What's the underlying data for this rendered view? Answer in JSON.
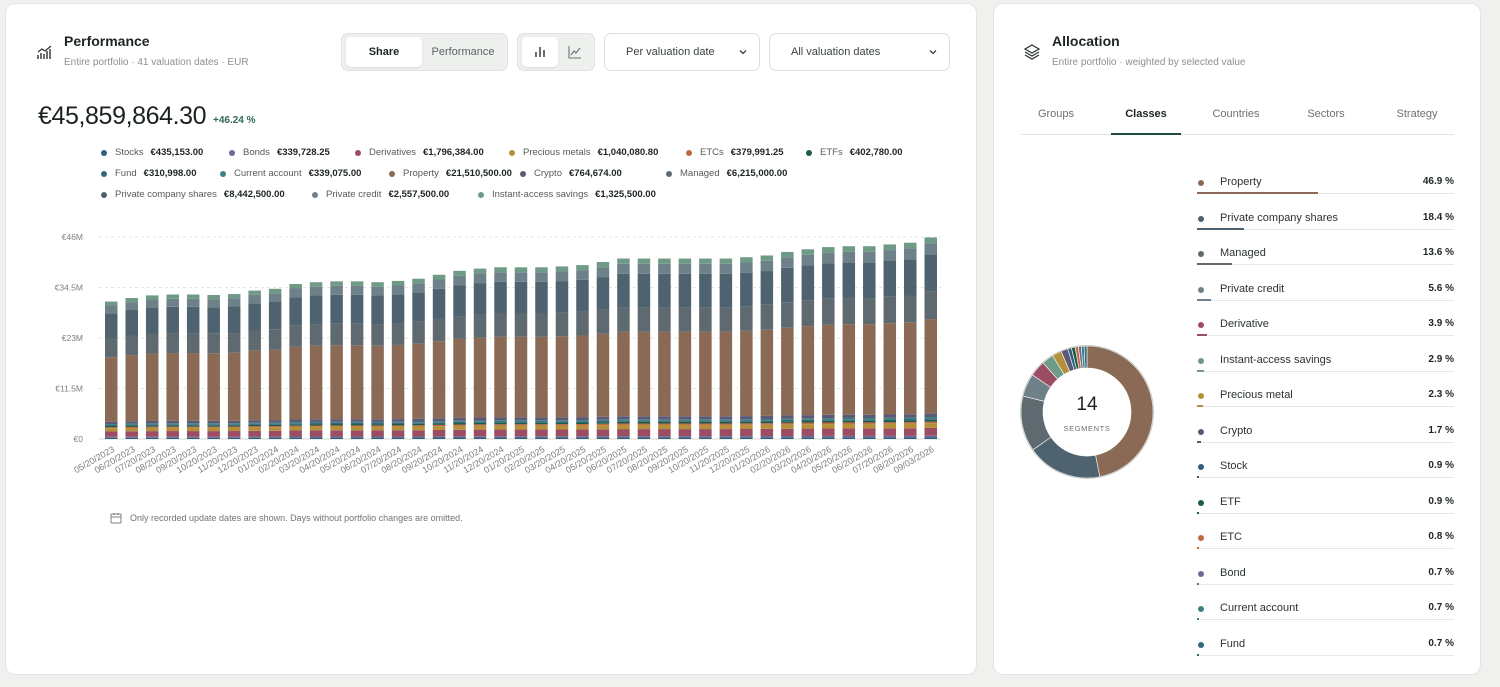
{
  "performance": {
    "title": "Performance",
    "subtitle": "Entire portfolio · 41 valuation dates · EUR",
    "mode_tabs": [
      "Share",
      "Performance"
    ],
    "active_mode": "Share",
    "view_icons": [
      "bar-chart-icon",
      "line-chart-icon"
    ],
    "dropdown_period": "Per valuation date",
    "dropdown_dates": "All valuation dates",
    "total_value": "€45,859,864.30",
    "total_change": "+46.24 %",
    "legend": [
      {
        "name": "Stocks",
        "value": "€435,153.00",
        "color": "#2f5d7c"
      },
      {
        "name": "Bonds",
        "value": "€339,728.25",
        "color": "#6c6a94"
      },
      {
        "name": "Derivatives",
        "value": "€1,796,384.00",
        "color": "#9c4d64"
      },
      {
        "name": "Precious metals",
        "value": "€1,040,080.80",
        "color": "#b5903a"
      },
      {
        "name": "ETCs",
        "value": "€379,991.25",
        "color": "#c26a3f"
      },
      {
        "name": "ETFs",
        "value": "€402,780.00",
        "color": "#1d5a48"
      },
      {
        "name": "Fund",
        "value": "€310,998.00",
        "color": "#35697a"
      },
      {
        "name": "Current account",
        "value": "€339,075.00",
        "color": "#3f7f7f"
      },
      {
        "name": "Property",
        "value": "€21,510,500.00",
        "color": "#8a6a55"
      },
      {
        "name": "Crypto",
        "value": "€764,674.00",
        "color": "#5a5a78"
      },
      {
        "name": "Managed",
        "value": "€6,215,000.00",
        "color": "#5e6a70"
      },
      {
        "name": "Private company shares",
        "value": "€8,442,500.00",
        "color": "#4f6270"
      },
      {
        "name": "Private credit",
        "value": "€2,557,500.00",
        "color": "#6e8088"
      },
      {
        "name": "Instant-access savings",
        "value": "€1,325,500.00",
        "color": "#6f9a86"
      }
    ],
    "footnote": "Only recorded update dates are shown. Days without portfolio changes are omitted."
  },
  "chart_data": {
    "type": "bar",
    "stacked": true,
    "ylim": [
      0,
      46000000
    ],
    "ytick_labels": [
      "€0",
      "€11.5M",
      "€23M",
      "€34.5M",
      "€46M"
    ],
    "categories": [
      "05/20/2023",
      "06/20/2023",
      "07/20/2023",
      "08/20/2023",
      "09/20/2023",
      "10/20/2023",
      "11/20/2023",
      "12/20/2023",
      "01/20/2024",
      "02/20/2024",
      "03/20/2024",
      "04/20/2024",
      "05/20/2024",
      "06/20/2024",
      "07/20/2024",
      "08/20/2024",
      "09/20/2024",
      "10/20/2024",
      "11/20/2024",
      "12/20/2024",
      "01/20/2025",
      "02/20/2025",
      "03/20/2025",
      "04/20/2025",
      "05/20/2025",
      "06/20/2025",
      "07/20/2025",
      "08/20/2025",
      "09/20/2025",
      "10/20/2025",
      "11/20/2025",
      "12/20/2025",
      "01/20/2026",
      "02/20/2026",
      "03/20/2026",
      "04/20/2026",
      "05/20/2026",
      "06/20/2026",
      "07/20/2026",
      "08/20/2026",
      "09/03/2026"
    ],
    "xtick_labels": [
      "05/20/2023",
      "06/20/2023",
      "07/20/2023",
      "08/20/2023",
      "09/20/2023",
      "10/20/2023",
      "11/20/2023",
      "12/20/2023",
      "01/20/2024",
      "02/20/2024",
      "03/20/2024",
      "04/20/2024",
      "05/20/2024",
      "06/20/2024",
      "07/20/2024",
      "08/20/2024",
      "09/20/2024",
      "10/20/2024",
      "11/20/2024",
      "12/20/2024",
      "01/20/2025",
      "02/20/2025",
      "03/20/2025",
      "04/20/2025",
      "05/20/2025",
      "06/20/2025",
      "07/20/2025",
      "08/20/2025",
      "09/20/2025",
      "10/20/2025",
      "11/20/2025",
      "12/20/2025",
      "01/20/2026",
      "02/20/2026",
      "03/20/2026",
      "04/20/2026",
      "05/20/2026",
      "06/20/2026",
      "07/20/2026",
      "08/20/2026",
      "09/03/2026"
    ],
    "totals": [
      31.3,
      32.1,
      32.7,
      32.9,
      32.9,
      32.8,
      33.0,
      33.8,
      34.2,
      35.3,
      35.7,
      35.9,
      35.9,
      35.7,
      36.0,
      36.5,
      37.4,
      38.3,
      38.8,
      39.1,
      39.1,
      39.1,
      39.3,
      39.6,
      40.3,
      41.1,
      41.1,
      41.1,
      41.1,
      41.1,
      41.1,
      41.4,
      41.8,
      42.6,
      43.2,
      43.7,
      43.9,
      43.9,
      44.3,
      44.7,
      45.9
    ],
    "totals_unit": "EUR millions",
    "series": [
      {
        "name": "Stocks",
        "color": "#2f5d7c",
        "share": 0.009
      },
      {
        "name": "Bonds",
        "color": "#6c6a94",
        "share": 0.007
      },
      {
        "name": "Derivatives",
        "color": "#9c4d64",
        "share": 0.039
      },
      {
        "name": "Precious metals",
        "color": "#b5903a",
        "share": 0.023
      },
      {
        "name": "ETCs",
        "color": "#c26a3f",
        "share": 0.008
      },
      {
        "name": "ETFs",
        "color": "#1d5a48",
        "share": 0.009
      },
      {
        "name": "Fund",
        "color": "#35697a",
        "share": 0.007
      },
      {
        "name": "Current account",
        "color": "#3f7f7f",
        "share": 0.007
      },
      {
        "name": "Property",
        "color": "#8a6a55",
        "share": 0.469
      },
      {
        "name": "Crypto",
        "color": "#5a5a78",
        "share": 0.017
      },
      {
        "name": "Managed",
        "color": "#5e6a70",
        "share": 0.136
      },
      {
        "name": "Private company shares",
        "color": "#4f6270",
        "share": 0.184
      },
      {
        "name": "Private credit",
        "color": "#6e8088",
        "share": 0.056
      },
      {
        "name": "Instant-access savings",
        "color": "#6f9a86",
        "share": 0.029
      }
    ]
  },
  "allocation": {
    "title": "Allocation",
    "subtitle": "Entire portfolio · weighted by selected value",
    "tabs": [
      "Groups",
      "Classes",
      "Countries",
      "Sectors",
      "Strategy"
    ],
    "active_tab": "Classes",
    "segments_count": "14",
    "segments_label": "SEGMENTS",
    "items": [
      {
        "name": "Property",
        "pct": "46.9 %",
        "share": 0.469,
        "color": "#8a6a55"
      },
      {
        "name": "Private company shares",
        "pct": "18.4 %",
        "share": 0.184,
        "color": "#4f6270"
      },
      {
        "name": "Managed",
        "pct": "13.6 %",
        "share": 0.136,
        "color": "#5e6a70"
      },
      {
        "name": "Private credit",
        "pct": "5.6 %",
        "share": 0.056,
        "color": "#6e8088"
      },
      {
        "name": "Derivative",
        "pct": "3.9 %",
        "share": 0.039,
        "color": "#9c4d64"
      },
      {
        "name": "Instant-access savings",
        "pct": "2.9 %",
        "share": 0.029,
        "color": "#6f9a86"
      },
      {
        "name": "Precious metal",
        "pct": "2.3 %",
        "share": 0.023,
        "color": "#b5903a"
      },
      {
        "name": "Crypto",
        "pct": "1.7 %",
        "share": 0.017,
        "color": "#5a5a78"
      },
      {
        "name": "Stock",
        "pct": "0.9 %",
        "share": 0.009,
        "color": "#2f5d7c"
      },
      {
        "name": "ETF",
        "pct": "0.9 %",
        "share": 0.009,
        "color": "#1d5a48"
      },
      {
        "name": "ETC",
        "pct": "0.8 %",
        "share": 0.008,
        "color": "#c26a3f"
      },
      {
        "name": "Bond",
        "pct": "0.7 %",
        "share": 0.007,
        "color": "#6c6a94"
      },
      {
        "name": "Current account",
        "pct": "0.7 %",
        "share": 0.007,
        "color": "#3f7f7f"
      },
      {
        "name": "Fund",
        "pct": "0.7 %",
        "share": 0.007,
        "color": "#35697a"
      }
    ]
  }
}
